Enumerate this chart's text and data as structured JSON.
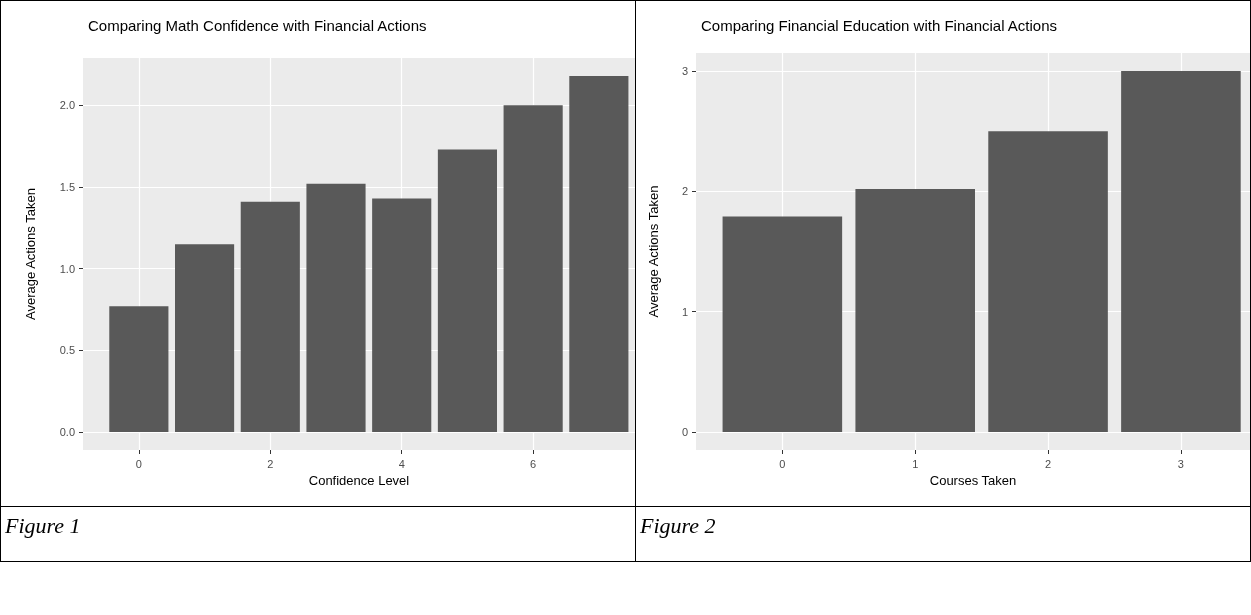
{
  "chart_data": [
    {
      "type": "bar",
      "title": "Comparing Math Confidence with Financial Actions",
      "xlabel": "Confidence Level",
      "ylabel": "Average Actions Taken",
      "x": [
        0,
        1,
        2,
        3,
        4,
        5,
        6,
        7
      ],
      "values": [
        0.77,
        1.15,
        1.41,
        1.52,
        1.43,
        1.73,
        2.0,
        2.18
      ],
      "color": "#595959",
      "xlim": [
        -0.85,
        7.55
      ],
      "ylim": [
        -0.11,
        2.29
      ],
      "xticks": [
        0,
        2,
        4,
        6
      ],
      "yticks": [
        {
          "value": 0,
          "label": "0.0"
        },
        {
          "value": 0.5,
          "label": "0.5"
        },
        {
          "value": 1,
          "label": "1.0"
        },
        {
          "value": 1.5,
          "label": "1.5"
        },
        {
          "value": 2,
          "label": "2.0"
        }
      ],
      "grid": true,
      "annotations": [
        "Figure 1"
      ]
    },
    {
      "type": "bar",
      "title": "Comparing Financial Education with Financial Actions",
      "xlabel": "Courses Taken",
      "ylabel": "Average Actions Taken",
      "x": [
        0,
        1,
        2,
        3
      ],
      "values": [
        1.79,
        2.02,
        2.5,
        3.0
      ],
      "color": "#595959",
      "xlim": [
        -0.65,
        3.52
      ],
      "ylim": [
        -0.15,
        3.15
      ],
      "xticks": [
        0,
        1,
        2,
        3
      ],
      "yticks": [
        0,
        1,
        2,
        3
      ],
      "grid": true,
      "annotations": [
        "Figure 2"
      ]
    }
  ]
}
